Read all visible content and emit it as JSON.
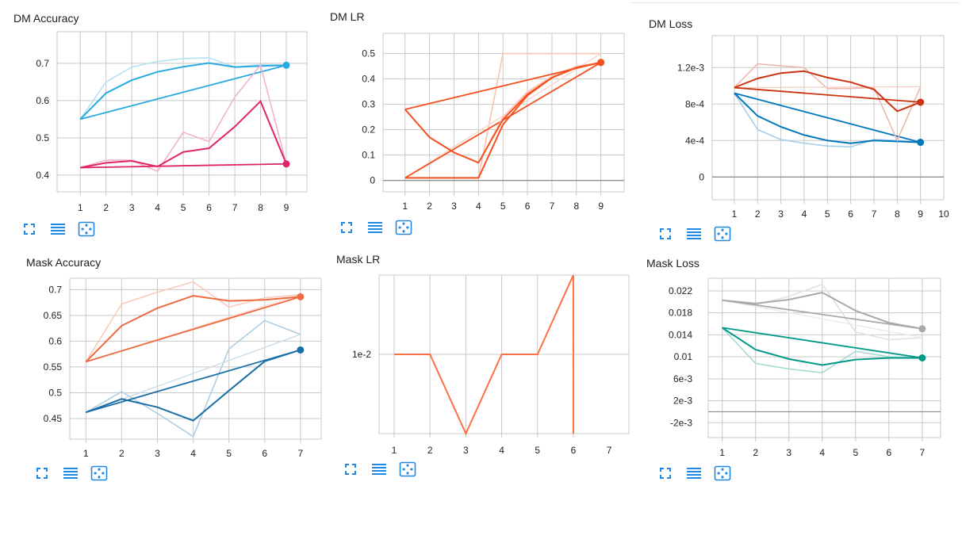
{
  "colors": {
    "grid": "#c8c8c8",
    "zero": "#8a8a8a",
    "tick": "#212121",
    "icon": "#1e88e5"
  },
  "toolbar_icons": [
    "expand-icon",
    "data-table-icon",
    "fit-domain-icon"
  ],
  "chart_data": [
    {
      "id": "dm-accuracy",
      "type": "line",
      "title": "DM Accuracy",
      "x": [
        1,
        2,
        3,
        4,
        5,
        6,
        7,
        8,
        9
      ],
      "xlim": [
        0.1,
        9.8
      ],
      "ylim": [
        0.355,
        0.785
      ],
      "yticks": [
        0.4,
        0.5,
        0.6,
        0.7
      ],
      "ytick_labels": [
        "0.4",
        "0.5",
        "0.6",
        "0.7"
      ],
      "series": [
        {
          "color": "#29a9e1",
          "raw": [
            0.55,
            0.65,
            0.69,
            0.705,
            0.713,
            0.715,
            0.69,
            0.697,
            0.695
          ],
          "smoothed": [
            0.55,
            0.62,
            0.655,
            0.677,
            0.691,
            0.701,
            0.69,
            0.693,
            0.695
          ]
        },
        {
          "color": "#e0246a",
          "raw": [
            0.42,
            0.44,
            0.44,
            0.41,
            0.515,
            0.49,
            0.61,
            0.695,
            0.43
          ],
          "smoothed": [
            0.42,
            0.433,
            0.438,
            0.423,
            0.462,
            0.472,
            0.53,
            0.598,
            0.43
          ]
        }
      ]
    },
    {
      "id": "dm-lr",
      "type": "line",
      "title": "DM LR",
      "x": [
        1,
        2,
        3,
        4,
        5,
        6,
        7,
        8,
        9
      ],
      "xlim": [
        0.1,
        9.95
      ],
      "ylim": [
        -0.045,
        0.58
      ],
      "yticks": [
        0,
        0.1,
        0.2,
        0.3,
        0.4,
        0.5
      ],
      "ytick_labels": [
        "0",
        "0.1",
        "0.2",
        "0.3",
        "0.4",
        "0.5"
      ],
      "series": [
        {
          "color": "#f4511e",
          "raw": [
            0.01,
            0.01,
            0.01,
            0.01,
            0.5,
            0.5,
            0.5,
            0.5,
            0.5
          ],
          "smoothed": [
            0.01,
            0.01,
            0.01,
            0.01,
            0.22,
            0.335,
            0.405,
            0.445,
            0.465
          ]
        },
        {
          "color": "#f4511e",
          "raw": [
            0.28,
            0.17,
            0.11,
            0.07,
            0.25,
            0.35,
            0.41,
            0.45,
            0.465
          ],
          "smoothed": [
            0.28,
            0.17,
            0.11,
            0.07,
            0.24,
            0.34,
            0.405,
            0.445,
            0.465
          ]
        }
      ]
    },
    {
      "id": "dm-loss",
      "type": "line",
      "title": "DM Loss",
      "x": [
        1,
        2,
        3,
        4,
        5,
        6,
        7,
        8,
        9
      ],
      "xlim": [
        0.05,
        10.0
      ],
      "ylim": [
        -0.00025,
        0.00155
      ],
      "yticks": [
        0,
        0.0004,
        0.0008,
        0.0012
      ],
      "ytick_labels": [
        "0",
        "4e-4",
        "8e-4",
        "1.2e-3"
      ],
      "series": [
        {
          "color": "#0077bb",
          "raw": [
            0.00092,
            0.00052,
            0.00041,
            0.00037,
            0.00034,
            0.00033,
            0.00041,
            0.0004,
            0.00038
          ],
          "smoothed": [
            0.00092,
            0.00067,
            0.00055,
            0.00046,
            0.0004,
            0.00037,
            0.0004,
            0.00039,
            0.00038
          ]
        },
        {
          "color": "#cc3311",
          "raw": [
            0.00098,
            0.00124,
            0.00122,
            0.0012,
            0.00097,
            0.00097,
            0.00098,
            0.0004,
            0.00099
          ],
          "smoothed": [
            0.00098,
            0.00108,
            0.00114,
            0.00116,
            0.00109,
            0.00104,
            0.00096,
            0.00072,
            0.00082
          ]
        }
      ]
    },
    {
      "id": "mask-accuracy",
      "type": "line",
      "title": "Mask Accuracy",
      "x": [
        1,
        2,
        3,
        4,
        5,
        6,
        7
      ],
      "xlim": [
        0.55,
        7.58
      ],
      "ylim": [
        0.41,
        0.722
      ],
      "yticks": [
        0.45,
        0.5,
        0.55,
        0.6,
        0.65,
        0.7
      ],
      "ytick_labels": [
        "0.45",
        "0.5",
        "0.55",
        "0.6",
        "0.65",
        "0.7"
      ],
      "series": [
        {
          "color": "#ee6a3f",
          "raw": [
            0.56,
            0.672,
            0.695,
            0.715,
            0.666,
            0.684,
            0.69
          ],
          "smoothed": [
            0.56,
            0.63,
            0.664,
            0.688,
            0.678,
            0.68,
            0.686
          ]
        },
        {
          "color": "#1a6fa6",
          "raw": [
            0.462,
            0.502,
            0.46,
            0.415,
            0.585,
            0.64,
            0.613
          ],
          "smoothed": [
            0.462,
            0.488,
            0.472,
            0.446,
            0.504,
            0.561,
            0.583
          ]
        }
      ]
    },
    {
      "id": "mask-lr",
      "type": "line",
      "title": "Mask LR",
      "x": [
        1,
        2,
        3,
        4,
        5,
        6
      ],
      "xlim": [
        0.58,
        7.55
      ],
      "ylim": [
        0,
        2
      ],
      "yticks": [
        1
      ],
      "ytick_labels": [
        "1e-2"
      ],
      "series": [
        {
          "color": "#ff7043",
          "raw": [
            1,
            1,
            0,
            1,
            1,
            2
          ],
          "smoothed": [
            1,
            1,
            0,
            1,
            1,
            2
          ],
          "drop_to_min_after_last": true
        }
      ]
    },
    {
      "id": "mask-loss",
      "type": "line",
      "title": "Mask Loss",
      "x": [
        1,
        2,
        3,
        4,
        5,
        6,
        7
      ],
      "xlim": [
        0.58,
        7.55
      ],
      "ylim": [
        -0.0047,
        0.0243
      ],
      "yticks": [
        -0.002,
        0.002,
        0.006,
        0.01,
        0.014,
        0.018,
        0.022
      ],
      "ytick_labels": [
        "-2e-3",
        "2e-3",
        "6e-3",
        "0.01",
        "0.014",
        "0.018",
        "0.022"
      ],
      "zero_line": 0,
      "series": [
        {
          "color": "#aaaaaa",
          "raw": [
            0.0203,
            0.0195,
            0.021,
            0.0232,
            0.0145,
            0.0131,
            0.0135
          ],
          "smoothed": [
            0.0203,
            0.0197,
            0.0204,
            0.0217,
            0.0184,
            0.0162,
            0.0151
          ]
        },
        {
          "color": "#009988",
          "raw": [
            0.0153,
            0.0088,
            0.0078,
            0.0071,
            0.011,
            0.01,
            0.0097
          ],
          "smoothed": [
            0.0153,
            0.0113,
            0.0096,
            0.0085,
            0.0095,
            0.0098,
            0.0098
          ]
        }
      ]
    }
  ]
}
